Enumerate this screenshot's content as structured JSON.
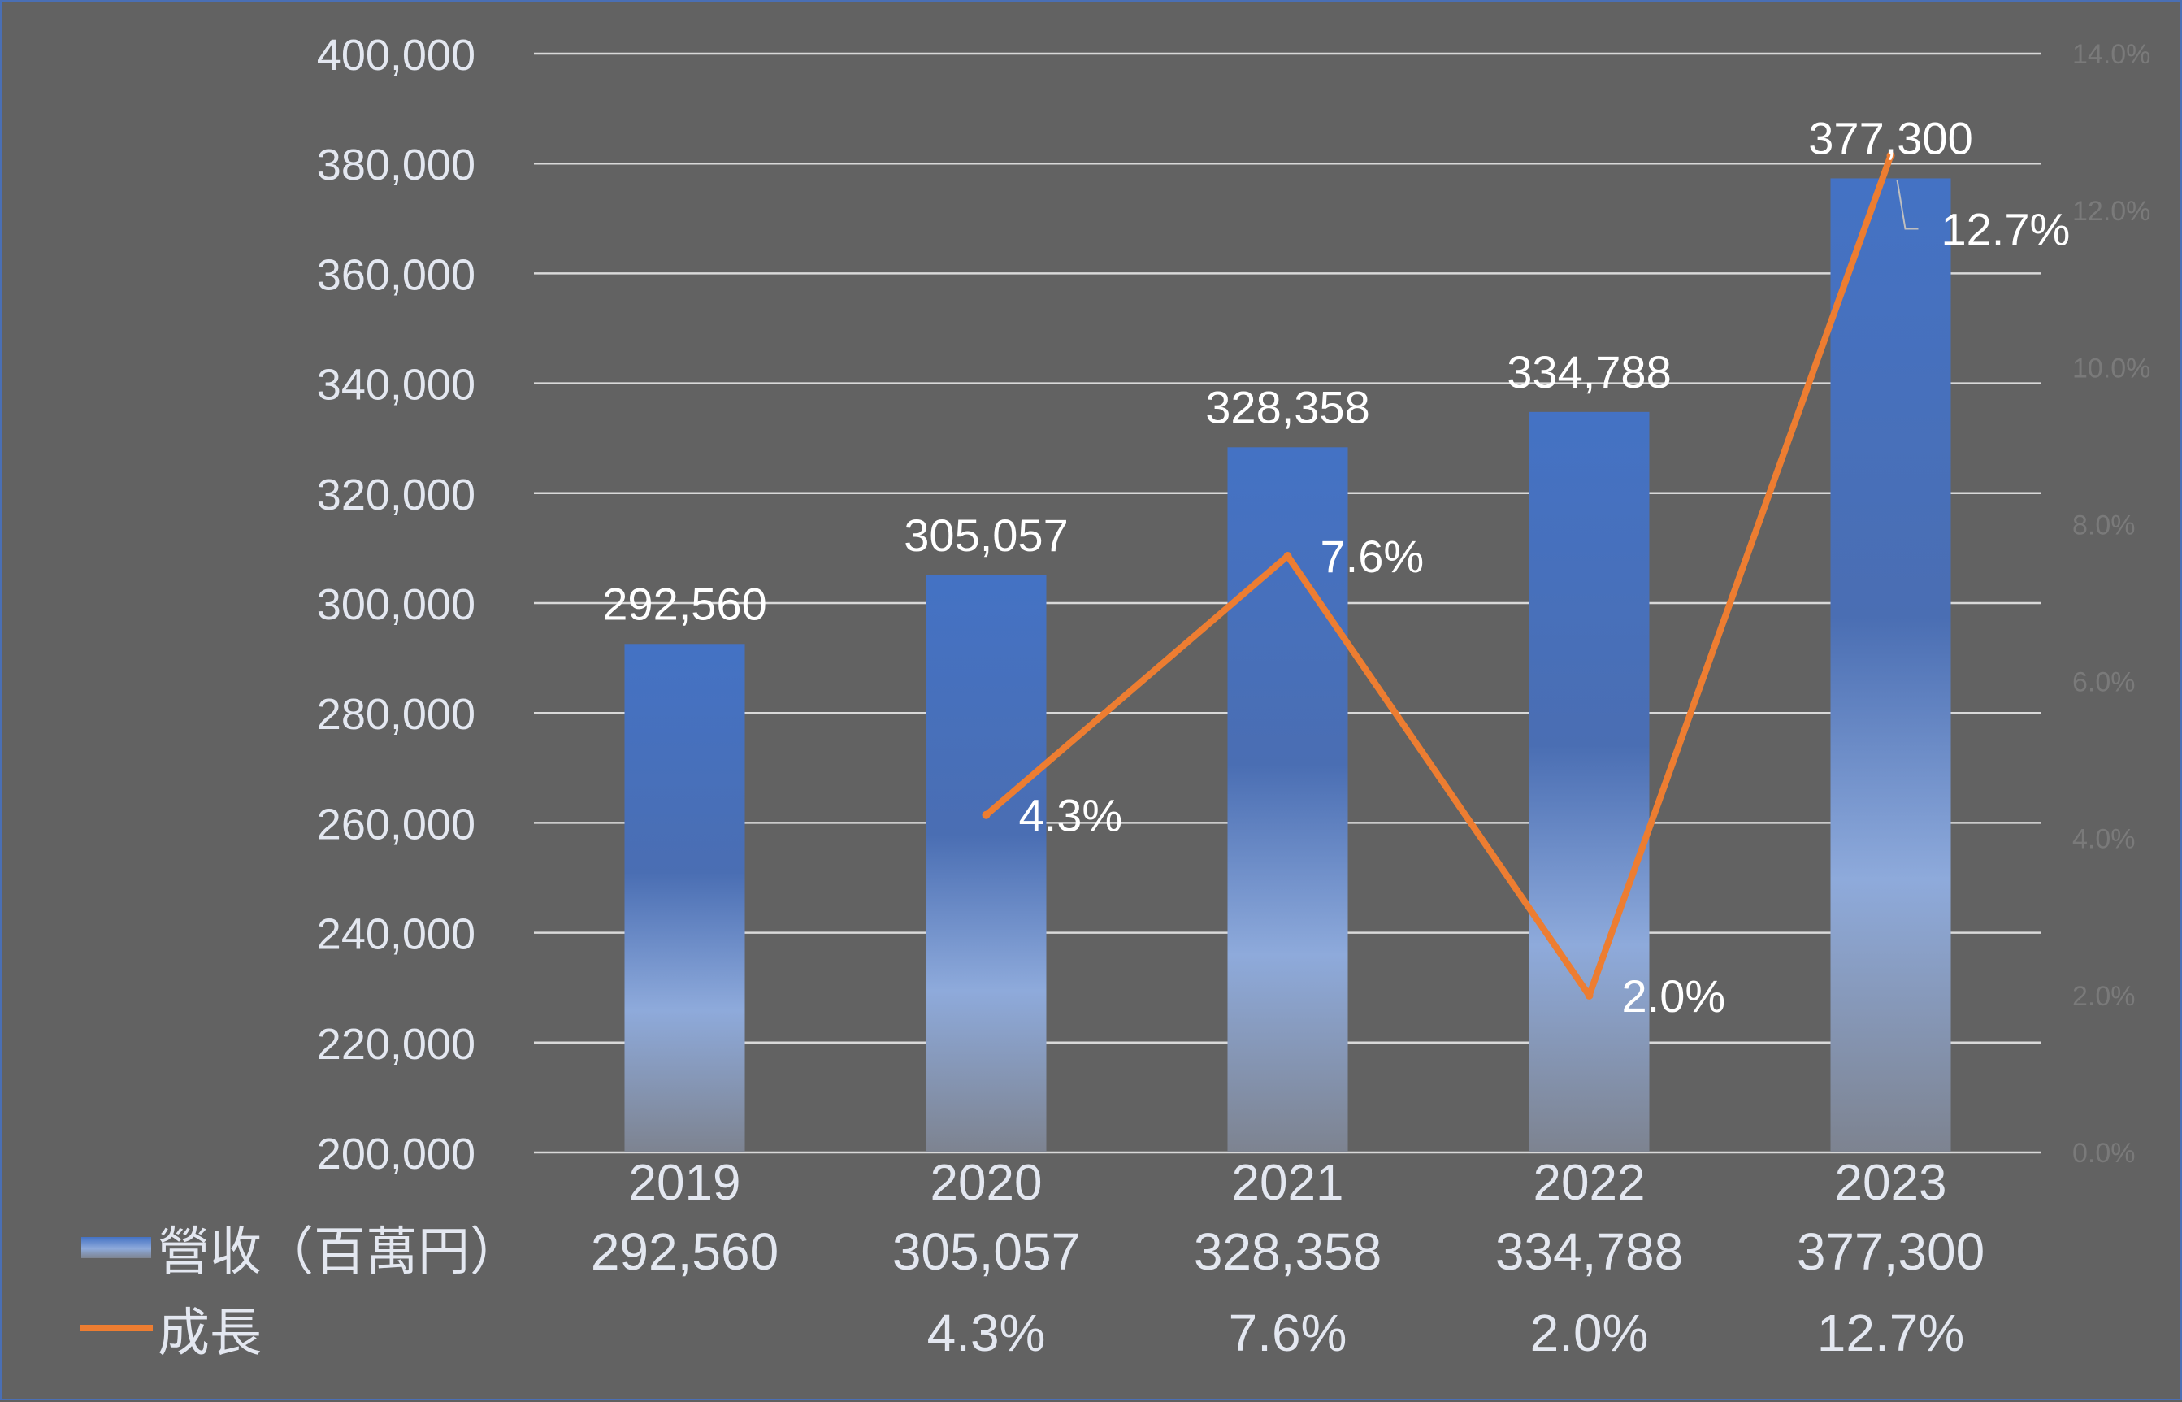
{
  "chart_data": {
    "type": "bar+line",
    "categories": [
      "2019",
      "2020",
      "2021",
      "2022",
      "2023"
    ],
    "series": [
      {
        "name": "營收（百萬円）",
        "type": "bar",
        "axis": "left",
        "values": [
          292560,
          305057,
          328358,
          334788,
          377300
        ],
        "labels": [
          "292,560",
          "305,057",
          "328,358",
          "334,788",
          "377,300"
        ],
        "color": "#4472c4"
      },
      {
        "name": "成長",
        "type": "line",
        "axis": "right",
        "values": [
          null,
          4.3,
          7.6,
          2.0,
          12.7
        ],
        "labels": [
          "",
          "4.3%",
          "7.6%",
          "2.0%",
          "12.7%"
        ],
        "color": "#ed7d31"
      }
    ],
    "y_left": {
      "range": [
        200000,
        400000
      ],
      "ticks": [
        "200,000",
        "220,000",
        "240,000",
        "260,000",
        "280,000",
        "300,000",
        "320,000",
        "340,000",
        "360,000",
        "380,000",
        "400,000"
      ]
    },
    "y_right": {
      "range": [
        0,
        14
      ],
      "ticks": [
        "0.0%",
        "2.0%",
        "4.0%",
        "6.0%",
        "8.0%",
        "10.0%",
        "12.0%",
        "14.0%"
      ]
    },
    "grid": true,
    "legend": "data-table-below",
    "data_table": {
      "rows": [
        {
          "name": "營收（百萬円）",
          "cells": [
            "292,560",
            "305,057",
            "328,358",
            "334,788",
            "377,300"
          ]
        },
        {
          "name": "成長",
          "cells": [
            "",
            "4.3%",
            "7.6%",
            "2.0%",
            "12.7%"
          ]
        }
      ]
    }
  },
  "colors": {
    "background": "#626262",
    "gridline": "#d9d9d9",
    "left_tick_text": "#e3e7f0",
    "right_tick_text": "#7a7a7a",
    "label_text": "#ffffff",
    "bar_top": "#4472c4",
    "bar_mid": "#8eaadb",
    "bar_bottom": "#858b95",
    "line": "#ed7d31"
  }
}
